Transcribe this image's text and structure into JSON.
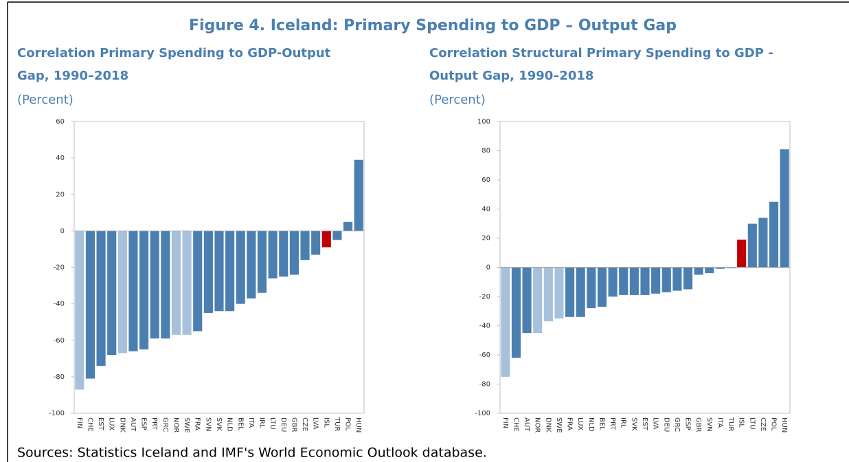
{
  "title": "Figure 4. Iceland: Primary Spending to GDP – Output Gap",
  "source": "Sources: Statistics Iceland and IMF's World Economic Outlook database.",
  "chart_data": [
    {
      "type": "bar",
      "title": [
        "Correlation Primary Spending to GDP-Output",
        "Gap, 1990–2018"
      ],
      "subtitle": "(Percent)",
      "categories": [
        "FIN",
        "CHE",
        "EST",
        "LUX",
        "DNK",
        "AUT",
        "ESP",
        "PRT",
        "GRC",
        "NOR",
        "SWE",
        "FRA",
        "SVN",
        "SVK",
        "NLD",
        "BEL",
        "ITA",
        "IRL",
        "LTU",
        "DEU",
        "GBR",
        "CZE",
        "LVA",
        "ISL",
        "TUR",
        "POL",
        "HUN"
      ],
      "values": [
        -87,
        -81,
        -74,
        -68,
        -67,
        -66,
        -65,
        -59,
        -59,
        -57,
        -57,
        -55,
        -45,
        -44,
        -44,
        -40,
        -37,
        -34,
        -26,
        -25,
        -24,
        -16,
        -13,
        -9,
        -5,
        5,
        39
      ],
      "colors": [
        "#a7c1dc",
        "#4a7fb0",
        "#4a7fb0",
        "#4a7fb0",
        "#a7c1dc",
        "#4a7fb0",
        "#4a7fb0",
        "#4a7fb0",
        "#4a7fb0",
        "#a7c1dc",
        "#a7c1dc",
        "#4a7fb0",
        "#4a7fb0",
        "#4a7fb0",
        "#4a7fb0",
        "#4a7fb0",
        "#4a7fb0",
        "#4a7fb0",
        "#4a7fb0",
        "#4a7fb0",
        "#4a7fb0",
        "#4a7fb0",
        "#4a7fb0",
        "#c00000",
        "#4a7fb0",
        "#4a7fb0",
        "#4a7fb0"
      ],
      "ylim": [
        -100,
        60
      ],
      "yticks": [
        -100,
        -80,
        -60,
        -40,
        -20,
        0,
        20,
        40,
        60
      ]
    },
    {
      "type": "bar",
      "title": [
        "Correlation Structural Primary Spending to GDP -",
        "Output Gap, 1990–2018"
      ],
      "subtitle": "(Percent)",
      "categories": [
        "FIN",
        "CHE",
        "AUT",
        "NOR",
        "DNK",
        "SWE",
        "FRA",
        "LUX",
        "NLD",
        "BEL",
        "PRT",
        "IRL",
        "SVK",
        "EST",
        "LVA",
        "DEU",
        "GRC",
        "ESP",
        "GBR",
        "SVN",
        "ITA",
        "TUR",
        "ISL",
        "LTU",
        "CZE",
        "POL",
        "HUN"
      ],
      "values": [
        -75,
        -62,
        -45,
        -45,
        -37,
        -35,
        -34,
        -34,
        -28,
        -27,
        -20,
        -19,
        -19,
        -19,
        -18,
        -17,
        -16,
        -15,
        -5,
        -4,
        -1,
        -0.5,
        19,
        30,
        34,
        45,
        81
      ],
      "colors": [
        "#a7c1dc",
        "#4a7fb0",
        "#4a7fb0",
        "#a7c1dc",
        "#a7c1dc",
        "#a7c1dc",
        "#4a7fb0",
        "#4a7fb0",
        "#4a7fb0",
        "#4a7fb0",
        "#4a7fb0",
        "#4a7fb0",
        "#4a7fb0",
        "#4a7fb0",
        "#4a7fb0",
        "#4a7fb0",
        "#4a7fb0",
        "#4a7fb0",
        "#4a7fb0",
        "#4a7fb0",
        "#4a7fb0",
        "#4a7fb0",
        "#c00000",
        "#4a7fb0",
        "#4a7fb0",
        "#4a7fb0",
        "#4a7fb0"
      ],
      "ylim": [
        -100,
        100
      ],
      "yticks": [
        -100,
        -80,
        -60,
        -40,
        -20,
        0,
        20,
        40,
        60,
        80,
        100
      ]
    }
  ]
}
